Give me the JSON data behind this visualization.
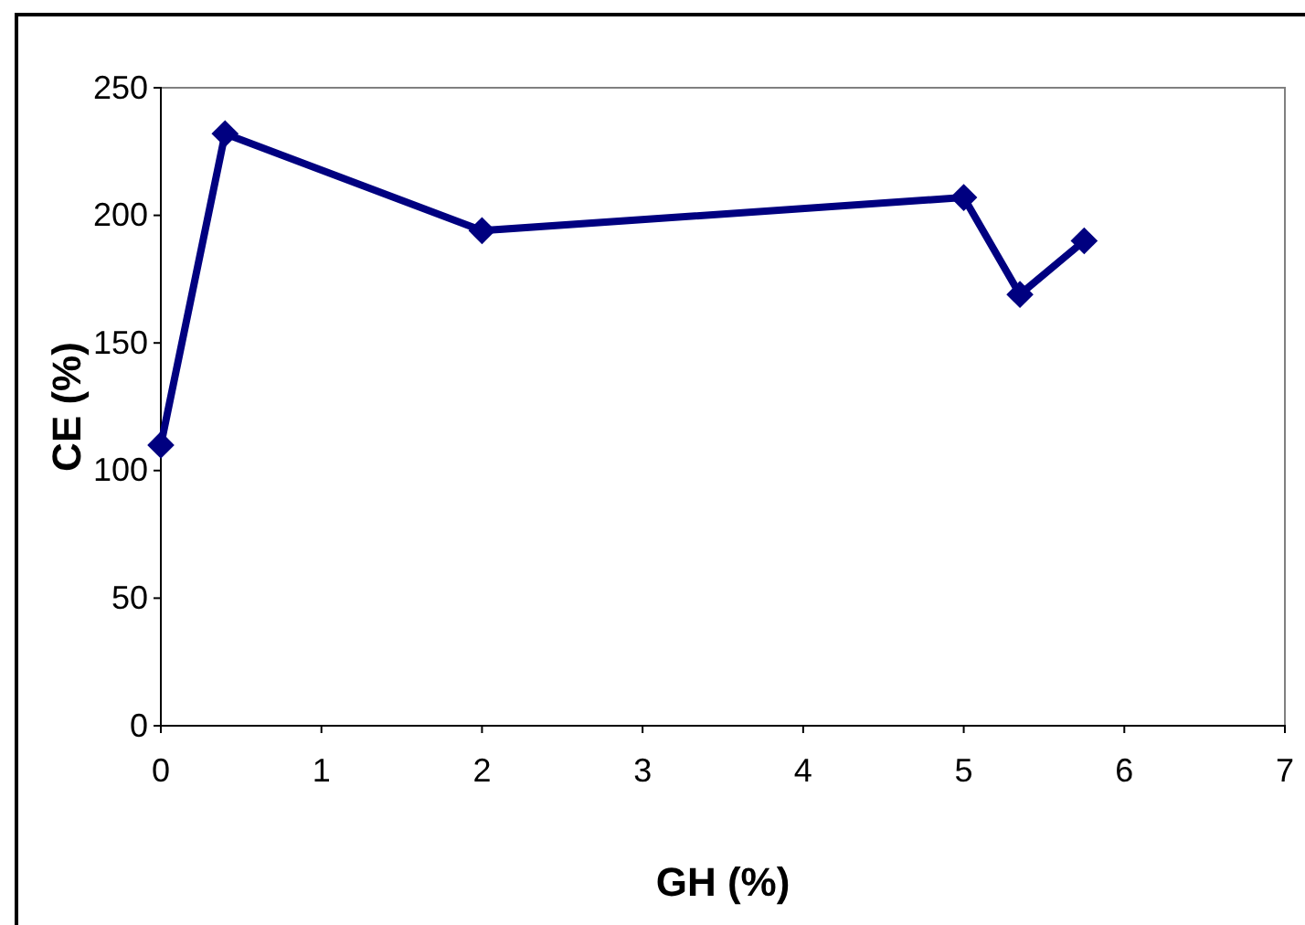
{
  "chart_data": {
    "type": "line",
    "xlabel": "GH  (%)",
    "ylabel": "CE  (%)",
    "x": [
      0,
      0.4,
      2,
      5,
      5.35,
      5.75
    ],
    "series": [
      {
        "color": "#000080",
        "values": [
          110,
          232,
          194,
          207,
          169,
          190
        ]
      }
    ],
    "xlim": [
      0,
      7
    ],
    "xticks": [
      0,
      1,
      2,
      3,
      4,
      5,
      6,
      7
    ],
    "ylim": [
      0,
      250
    ],
    "yticks": [
      0,
      50,
      100,
      150,
      200,
      250
    ],
    "marker": "diamond",
    "line_style": "solid"
  }
}
